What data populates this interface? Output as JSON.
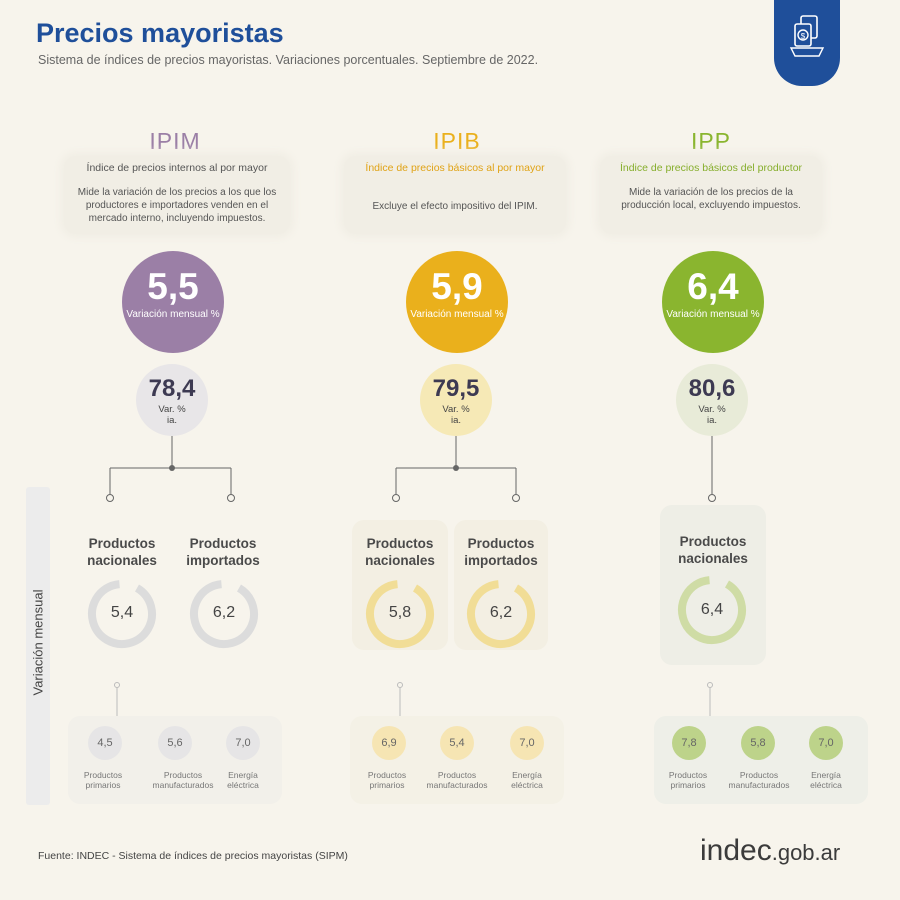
{
  "header": {
    "title": "Precios mayoristas",
    "subtitle": "Sistema de índices de precios mayoristas. Variaciones porcentuales. Septiembre de 2022."
  },
  "colors": {
    "ipim": "#9b7fa6",
    "ipib": "#eab01c",
    "ipp": "#8ab52f",
    "title": "#1f4f9a"
  },
  "badge_icon": "price-tag-icon",
  "side_label": "Variación mensual",
  "columns": [
    {
      "name": "IPIM",
      "def_title": "Índice de precios internos al por mayor",
      "def_text": "Mide la variación de los precios a los que los productores e importadores venden en el mercado interno, incluyendo impuestos.",
      "monthly": "5,5",
      "monthly_label": "Variación mensual %",
      "annual": "78,4",
      "annual_label": "Var. % ia.",
      "products": [
        {
          "label": "Productos nacionales",
          "value": "5,4"
        },
        {
          "label": "Productos importados",
          "value": "6,2"
        }
      ],
      "sub": [
        {
          "value": "4,5",
          "label": "Productos primarios"
        },
        {
          "value": "5,6",
          "label": "Productos manufacturados"
        },
        {
          "value": "7,0",
          "label": "Energía eléctrica"
        }
      ]
    },
    {
      "name": "IPIB",
      "def_title": "Índice de precios básicos al por mayor",
      "def_text": "Excluye el efecto impositivo del IPIM.",
      "monthly": "5,9",
      "monthly_label": "Variación mensual %",
      "annual": "79,5",
      "annual_label": "Var. % ia.",
      "products": [
        {
          "label": "Productos nacionales",
          "value": "5,8"
        },
        {
          "label": "Productos importados",
          "value": "6,2"
        }
      ],
      "sub": [
        {
          "value": "6,9",
          "label": "Productos primarios"
        },
        {
          "value": "5,4",
          "label": "Productos manufacturados"
        },
        {
          "value": "7,0",
          "label": "Energía eléctrica"
        }
      ]
    },
    {
      "name": "IPP",
      "def_title": "Índice de precios básicos del productor",
      "def_text": "Mide la variación de los precios de la producción local, excluyendo impuestos.",
      "monthly": "6,4",
      "monthly_label": "Variación mensual %",
      "annual": "80,6",
      "annual_label": "Var. % ia.",
      "products": [
        {
          "label": "Productos nacionales",
          "value": "6,4"
        }
      ],
      "sub": [
        {
          "value": "7,8",
          "label": "Productos primarios"
        },
        {
          "value": "5,8",
          "label": "Productos manufacturados"
        },
        {
          "value": "7,0",
          "label": "Energía eléctrica"
        }
      ]
    }
  ],
  "footer": {
    "source": "Fuente: INDEC - Sistema de índices de precios mayoristas (SIPM)",
    "logo_main": "indec",
    "logo_suffix": ".gob.ar"
  }
}
